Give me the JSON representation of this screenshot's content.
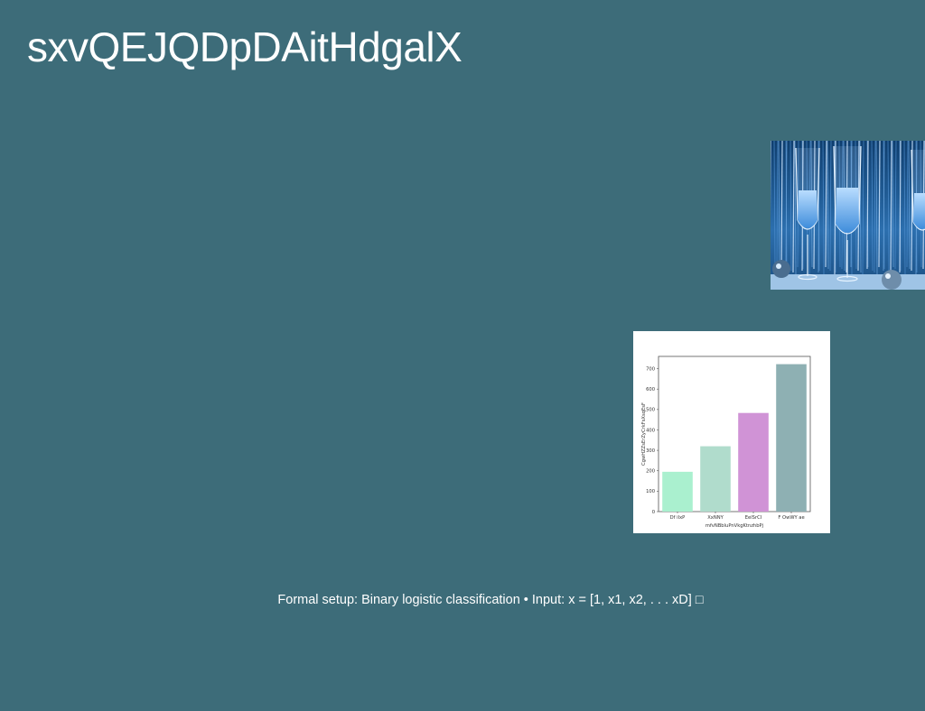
{
  "slide": {
    "title": "sxvQEJQDpDAitHdgalX",
    "caption": "Formal setup: Binary logistic classification • Input: x = [1, x1, x2, . . . xD] □",
    "background_color": "#3d6c79",
    "text_color": "#ffffff"
  },
  "photo": {
    "icon": "champagne-glasses-photo",
    "subject": "champagne glasses in front of a blue tinsel curtain"
  },
  "chart_data": {
    "type": "bar",
    "categories": [
      "Df iIxP",
      "XxNNY",
      "EelSrCI",
      "F OwWY ae"
    ],
    "values": [
      195,
      320,
      483,
      722
    ],
    "colors": [
      "#aaf0cf",
      "#b0dccc",
      "#d093d6",
      "#8eb0b3"
    ],
    "title": "",
    "xlabel": "mfvNBbluPnVkgKtnzhbPj",
    "ylabel": "CgwHZZsErZyCrkFsXsqEsF",
    "ylim": [
      0,
      760
    ],
    "yticks": [
      0,
      100,
      200,
      300,
      400,
      500,
      600,
      700
    ],
    "grid": false
  }
}
